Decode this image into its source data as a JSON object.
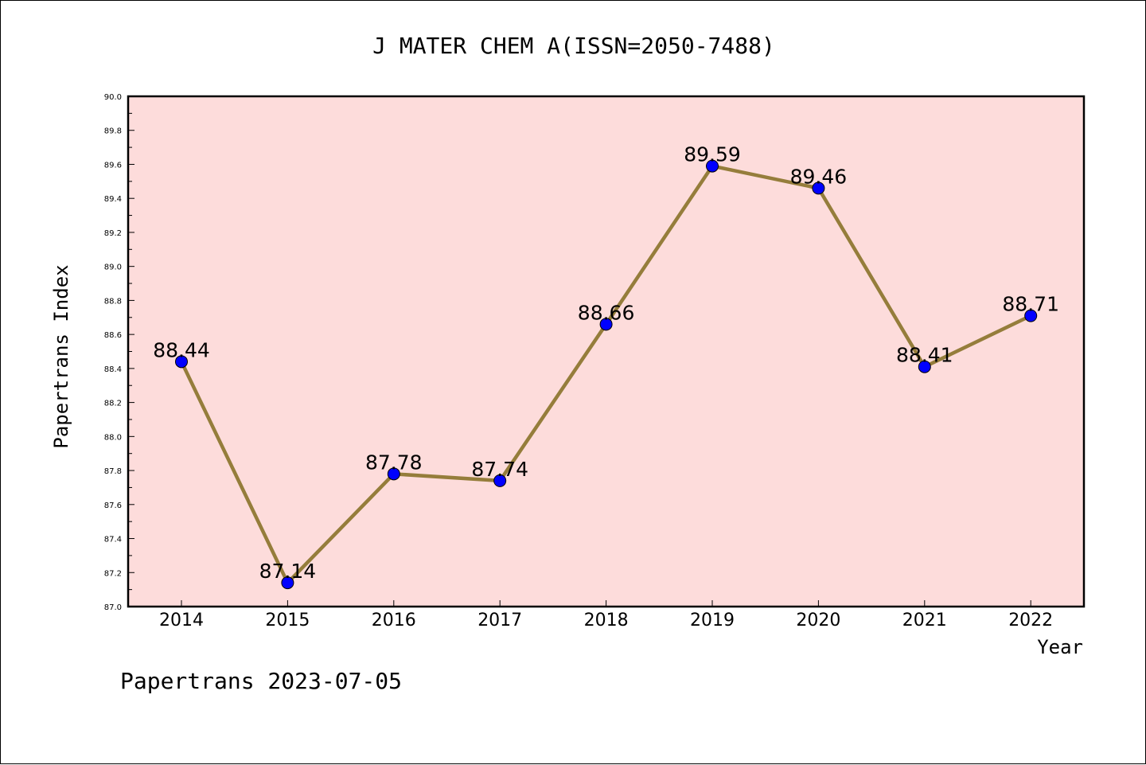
{
  "chart_data": {
    "type": "line",
    "title": "J MATER CHEM A(ISSN=2050-7488)",
    "xlabel": "Year",
    "ylabel": "Papertrans Index",
    "categories": [
      "2014",
      "2015",
      "2016",
      "2017",
      "2018",
      "2019",
      "2020",
      "2021",
      "2022"
    ],
    "values": [
      88.44,
      87.14,
      87.78,
      87.74,
      88.66,
      89.59,
      89.46,
      88.41,
      88.71
    ],
    "data_labels": [
      "88.44",
      "87.14",
      "87.78",
      "87.74",
      "88.66",
      "89.59",
      "89.46",
      "88.41",
      "88.71"
    ],
    "ylim": [
      87.0,
      90.0
    ],
    "yticks": [
      "87.0",
      "87.2",
      "87.4",
      "87.6",
      "87.8",
      "88.0",
      "88.2",
      "88.4",
      "88.6",
      "88.8",
      "89.0",
      "89.2",
      "89.4",
      "89.6",
      "89.8",
      "90.0"
    ],
    "grid": false,
    "legend": "none",
    "colors": {
      "plot_background": "#fddcdb",
      "line": "#957d3b",
      "marker": "#0000ff"
    }
  },
  "footer": "Papertrans 2023-07-05"
}
